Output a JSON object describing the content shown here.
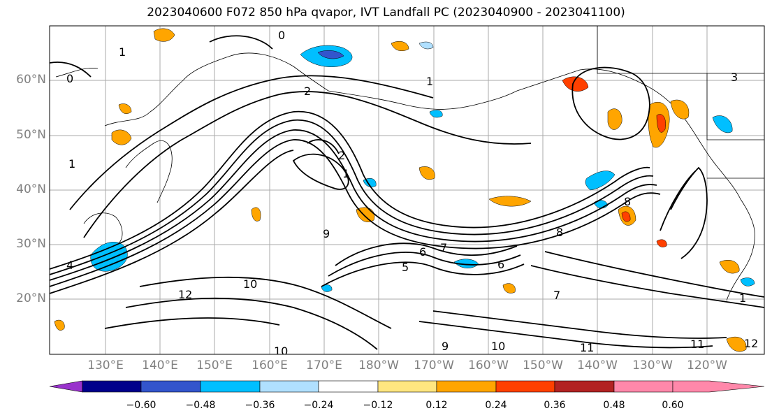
{
  "title": "2023040600 F072 850 hPa qvapor, IVT Landfall PC (2023040900 - 2023041100)",
  "map": {
    "lat_labels": [
      "60°N",
      "50°N",
      "40°N",
      "30°N",
      "20°N"
    ],
    "lon_labels": [
      "130°E",
      "140°E",
      "150°E",
      "160°E",
      "170°E",
      "180°W",
      "170°W",
      "160°W",
      "150°W",
      "140°W",
      "130°W",
      "120°W"
    ],
    "contour_labels": [
      "0",
      "1",
      "2",
      "1",
      "0",
      "1",
      "2",
      "1",
      "3",
      "8",
      "12",
      "10",
      "9",
      "6",
      "7",
      "5",
      "6",
      "8",
      "9",
      "10",
      "11",
      "11",
      "12",
      "10",
      "7",
      "4",
      "1"
    ]
  },
  "colorbar": {
    "ticks": [
      "−0.60",
      "−0.48",
      "−0.36",
      "−0.24",
      "−0.12",
      "0.12",
      "0.24",
      "0.36",
      "0.48",
      "0.60"
    ],
    "colors": [
      "#9932cc",
      "#00008b",
      "#3355cc",
      "#00bfff",
      "#b0e0ff",
      "#ffffff",
      "#ffe680",
      "#ffa500",
      "#ff4000",
      "#b22222",
      "#ff88aa"
    ]
  }
}
